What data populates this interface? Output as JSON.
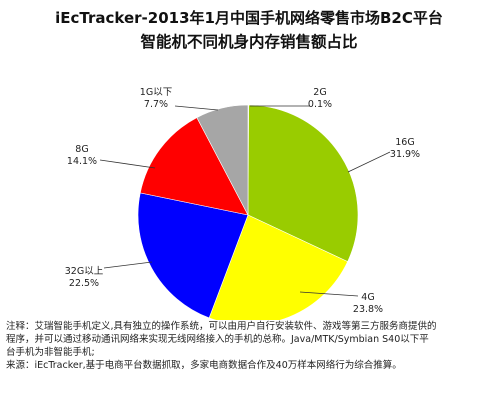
{
  "title_line1": "iEcTracker-2013年1月中国手机网络零售市场B2C平台",
  "title_line2": "智能机不同机身内存销售额占比",
  "chart_data": {
    "type": "pie",
    "title": "iEcTracker-2013年1月中国手机网络零售市场B2C平台 智能机不同机身内存销售额占比",
    "slices": [
      {
        "label": "2G",
        "value": 0.1,
        "value_label": "0.1%",
        "color": "#7f7f7f"
      },
      {
        "label": "16G",
        "value": 31.9,
        "value_label": "31.9%",
        "color": "#99cc00"
      },
      {
        "label": "4G",
        "value": 23.8,
        "value_label": "23.8%",
        "color": "#ffff00"
      },
      {
        "label": "32G以上",
        "value": 22.5,
        "value_label": "22.5%",
        "color": "#0000ff"
      },
      {
        "label": "8G",
        "value": 14.1,
        "value_label": "14.1%",
        "color": "#ff0000"
      },
      {
        "label": "1G以下",
        "value": 7.7,
        "value_label": "7.7%",
        "color": "#a6a6a6"
      }
    ]
  },
  "notes": {
    "line1": "注释：艾瑞智能手机定义,具有独立的操作系统，可以由用户自行安装软件、游戏等第三方服务商提供的",
    "line2": "程序，并可以通过移动通讯网络来实现无线网络接入的手机的总称。Java/MTK/Symbian S40以下平",
    "line3": "台手机为非智能手机;",
    "line4": "来源：iEcTracker,基于电商平台数据抓取，多家电商数据合作及40万样本网络行为综合推算。"
  }
}
